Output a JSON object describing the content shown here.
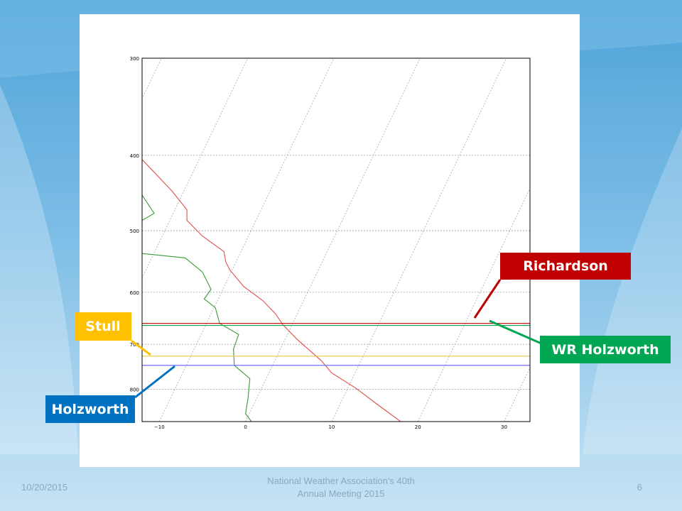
{
  "slide": {
    "date": "10/20/2015",
    "footer_line1": "National Weather Association's 40th",
    "footer_line2": "Annual Meeting 2015",
    "page_number": "6"
  },
  "callouts": {
    "richardson": "Richardson",
    "wr_holzworth": "WR Holzworth",
    "stull": "Stull",
    "holzworth": "Holzworth"
  },
  "colors": {
    "temperature": "#e0504a",
    "dewpoint": "#3a9a3a",
    "richardson": "#c00000",
    "wr_holzworth": "#00a651",
    "stull": "#ffc000",
    "holzworth": "#0070c0",
    "plot_blue_line": "#6f6fff",
    "plot_yellow_line": "#e6c84a"
  },
  "chart_data": {
    "type": "line",
    "title": "",
    "xlabel": "",
    "ylabel": "",
    "x_ticks": [
      "-10",
      "0",
      "10",
      "20",
      "30"
    ],
    "y_ticks": [
      "300",
      "400",
      "500",
      "600",
      "700",
      "800"
    ],
    "xlim": [
      -12,
      33
    ],
    "pressure_range_hpa": [
      300,
      880
    ],
    "log_pressure_axis": true,
    "grid": true,
    "skewed_isotherms": true,
    "series": [
      {
        "role": "temperature",
        "points": [
          [
            -12,
            405
          ],
          [
            -8.5,
            445
          ],
          [
            -6.8,
            470
          ],
          [
            -6.8,
            485
          ],
          [
            -5,
            508
          ],
          [
            -2.5,
            532
          ],
          [
            -2.3,
            548
          ],
          [
            -1.8,
            562
          ],
          [
            -0.2,
            590
          ],
          [
            2,
            615
          ],
          [
            3.5,
            640
          ],
          [
            4.3,
            660
          ],
          [
            6,
            690
          ],
          [
            8.8,
            735
          ],
          [
            10,
            762
          ],
          [
            12.8,
            797
          ],
          [
            15.2,
            835
          ],
          [
            18,
            880
          ]
        ]
      },
      {
        "role": "dewpoint",
        "points": [
          [
            -12,
            450
          ],
          [
            -10.6,
            475
          ],
          [
            -12,
            485
          ],
          [
            -12,
            535
          ],
          [
            -7,
            542
          ],
          [
            -5,
            565
          ],
          [
            -4,
            595
          ],
          [
            -4.8,
            612
          ],
          [
            -3.5,
            628
          ],
          [
            -3,
            658
          ],
          [
            -0.8,
            680
          ],
          [
            -1.4,
            710
          ],
          [
            -1.3,
            745
          ],
          [
            0.5,
            775
          ],
          [
            0.3,
            820
          ],
          [
            0,
            860
          ],
          [
            0.7,
            880
          ]
        ]
      },
      {
        "role": "pbl-top",
        "pressure": 658
      },
      {
        "role": "pbl-top",
        "pressure": 662
      },
      {
        "role": "pbl-top",
        "pressure": 725
      },
      {
        "role": "pbl-top",
        "pressure": 745
      }
    ]
  }
}
